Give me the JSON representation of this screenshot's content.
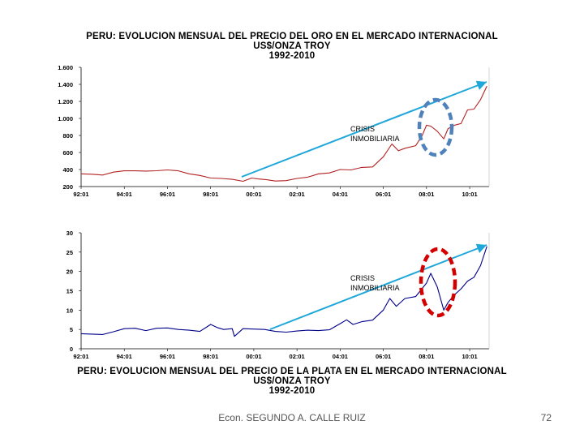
{
  "chart_data": [
    {
      "type": "line",
      "title_lines": [
        "PERU: EVOLUCION MENSUAL DEL PRECIO DEL ORO EN EL MERCADO INTERNACIONAL",
        "US$/ONZA TROY",
        "1992-2010"
      ],
      "x_ticks": [
        "92:01",
        "94:01",
        "96:01",
        "98:01",
        "00:01",
        "02:01",
        "04:01",
        "06:01",
        "08:01",
        "10:01"
      ],
      "y_ticks": [
        "1.600",
        "1.400",
        "1.200",
        "1.000",
        "800",
        "600",
        "400",
        "200"
      ],
      "y_tick_values": [
        1600,
        1400,
        1200,
        1000,
        800,
        600,
        400,
        200
      ],
      "ylim": [
        200,
        1600
      ],
      "xlim": [
        1992.0,
        2010.9
      ],
      "series_color": "#b22222",
      "annotation": "CRISIS\nINMOBILIARIA",
      "annotation_lines": [
        "CRISIS",
        "INMOBILIARIA"
      ],
      "ellipse_color": "#4f81bd",
      "arrow_color": "#1ea7d8",
      "series": [
        {
          "name": "Oro",
          "x": [
            1992.0,
            1992.5,
            1993.0,
            1993.5,
            1994.0,
            1994.5,
            1995.0,
            1995.5,
            1996.0,
            1996.5,
            1997.0,
            1997.5,
            1998.0,
            1998.5,
            1999.0,
            1999.5,
            1999.9,
            2000.2,
            2000.6,
            2001.0,
            2001.5,
            2002.0,
            2002.5,
            2003.0,
            2003.5,
            2004.0,
            2004.5,
            2005.0,
            2005.5,
            2006.0,
            2006.4,
            2006.7,
            2007.0,
            2007.5,
            2007.8,
            2008.0,
            2008.2,
            2008.5,
            2008.8,
            2009.0,
            2009.3,
            2009.6,
            2009.9,
            2010.2,
            2010.5,
            2010.8
          ],
          "values": [
            350,
            345,
            335,
            370,
            385,
            385,
            382,
            386,
            395,
            385,
            350,
            330,
            300,
            295,
            285,
            262,
            300,
            290,
            280,
            265,
            270,
            295,
            310,
            350,
            360,
            400,
            395,
            425,
            430,
            550,
            700,
            620,
            650,
            680,
            800,
            920,
            910,
            850,
            760,
            880,
            920,
            940,
            1100,
            1110,
            1220,
            1380
          ]
        }
      ]
    },
    {
      "type": "line",
      "title_lines": [
        "PERU: EVOLUCION MENSUAL DEL PRECIO DE LA PLATA EN EL MERCADO INTERNACIONAL",
        "US$/ONZA TROY",
        "1992-2010"
      ],
      "x_ticks": [
        "92:01",
        "94:01",
        "96:01",
        "98:01",
        "00:01",
        "02:01",
        "04:01",
        "06:01",
        "08:01",
        "10:01"
      ],
      "y_ticks": [
        "30",
        "25",
        "20",
        "15",
        "10",
        "5",
        "0"
      ],
      "y_tick_values": [
        30,
        25,
        20,
        15,
        10,
        5,
        0
      ],
      "ylim": [
        0,
        30
      ],
      "xlim": [
        1992.0,
        2010.9
      ],
      "series_color": "#00008b",
      "annotation": "CRISIS\nINMOBILIARIA",
      "annotation_lines": [
        "CRISIS",
        "INMOBILIARIA"
      ],
      "ellipse_color": "#d40000",
      "arrow_color": "#1ea7d8",
      "series": [
        {
          "name": "Plata",
          "x": [
            1992.0,
            1992.5,
            1993.0,
            1993.5,
            1994.0,
            1994.5,
            1995.0,
            1995.5,
            1996.0,
            1996.5,
            1997.0,
            1997.5,
            1998.0,
            1998.3,
            1998.6,
            1999.0,
            1999.1,
            1999.5,
            2000.0,
            2000.5,
            2001.0,
            2001.5,
            2002.0,
            2002.5,
            2003.0,
            2003.5,
            2004.0,
            2004.3,
            2004.6,
            2005.0,
            2005.5,
            2006.0,
            2006.3,
            2006.6,
            2007.0,
            2007.5,
            2008.0,
            2008.2,
            2008.5,
            2008.8,
            2009.0,
            2009.3,
            2009.6,
            2009.9,
            2010.2,
            2010.5,
            2010.8
          ],
          "values": [
            3.9,
            3.8,
            3.7,
            4.4,
            5.2,
            5.3,
            4.7,
            5.3,
            5.4,
            5.0,
            4.8,
            4.5,
            6.3,
            5.5,
            5.0,
            5.2,
            3.2,
            5.2,
            5.1,
            5.0,
            4.5,
            4.3,
            4.6,
            4.8,
            4.7,
            4.9,
            6.5,
            7.5,
            6.3,
            7.0,
            7.4,
            10.0,
            13.0,
            11.0,
            13.0,
            13.5,
            17.0,
            19.5,
            16.0,
            10.0,
            12.0,
            14.0,
            15.5,
            17.5,
            18.5,
            21.5,
            26.5
          ]
        }
      ]
    }
  ],
  "footer": "Econ. SEGUNDO A. CALLE RUIZ",
  "page_number": "72"
}
